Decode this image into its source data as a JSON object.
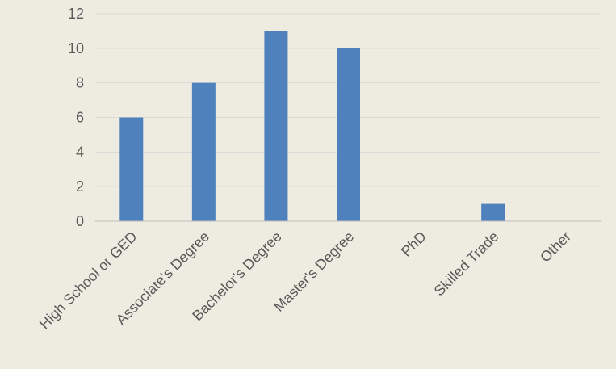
{
  "chart_data": {
    "type": "bar",
    "title": "",
    "xlabel": "",
    "ylabel": "",
    "categories": [
      "High School or GED",
      "Associate's Degree",
      "Bachelor's Degree",
      "Master's Degree",
      "PhD",
      "Skilled Trade",
      "Other"
    ],
    "values": [
      6,
      8,
      11,
      10,
      0,
      1,
      0
    ],
    "ylim": [
      0,
      12
    ],
    "yticks": [
      "0",
      "2",
      "4",
      "6",
      "8",
      "10",
      "12"
    ],
    "grid": true,
    "legend": "none",
    "colors": {
      "bar": "#4F81BD",
      "grid": "#D9D9D9",
      "axis": "#BFBFBF",
      "text": "#595959",
      "background": "#EEEBE1"
    }
  }
}
